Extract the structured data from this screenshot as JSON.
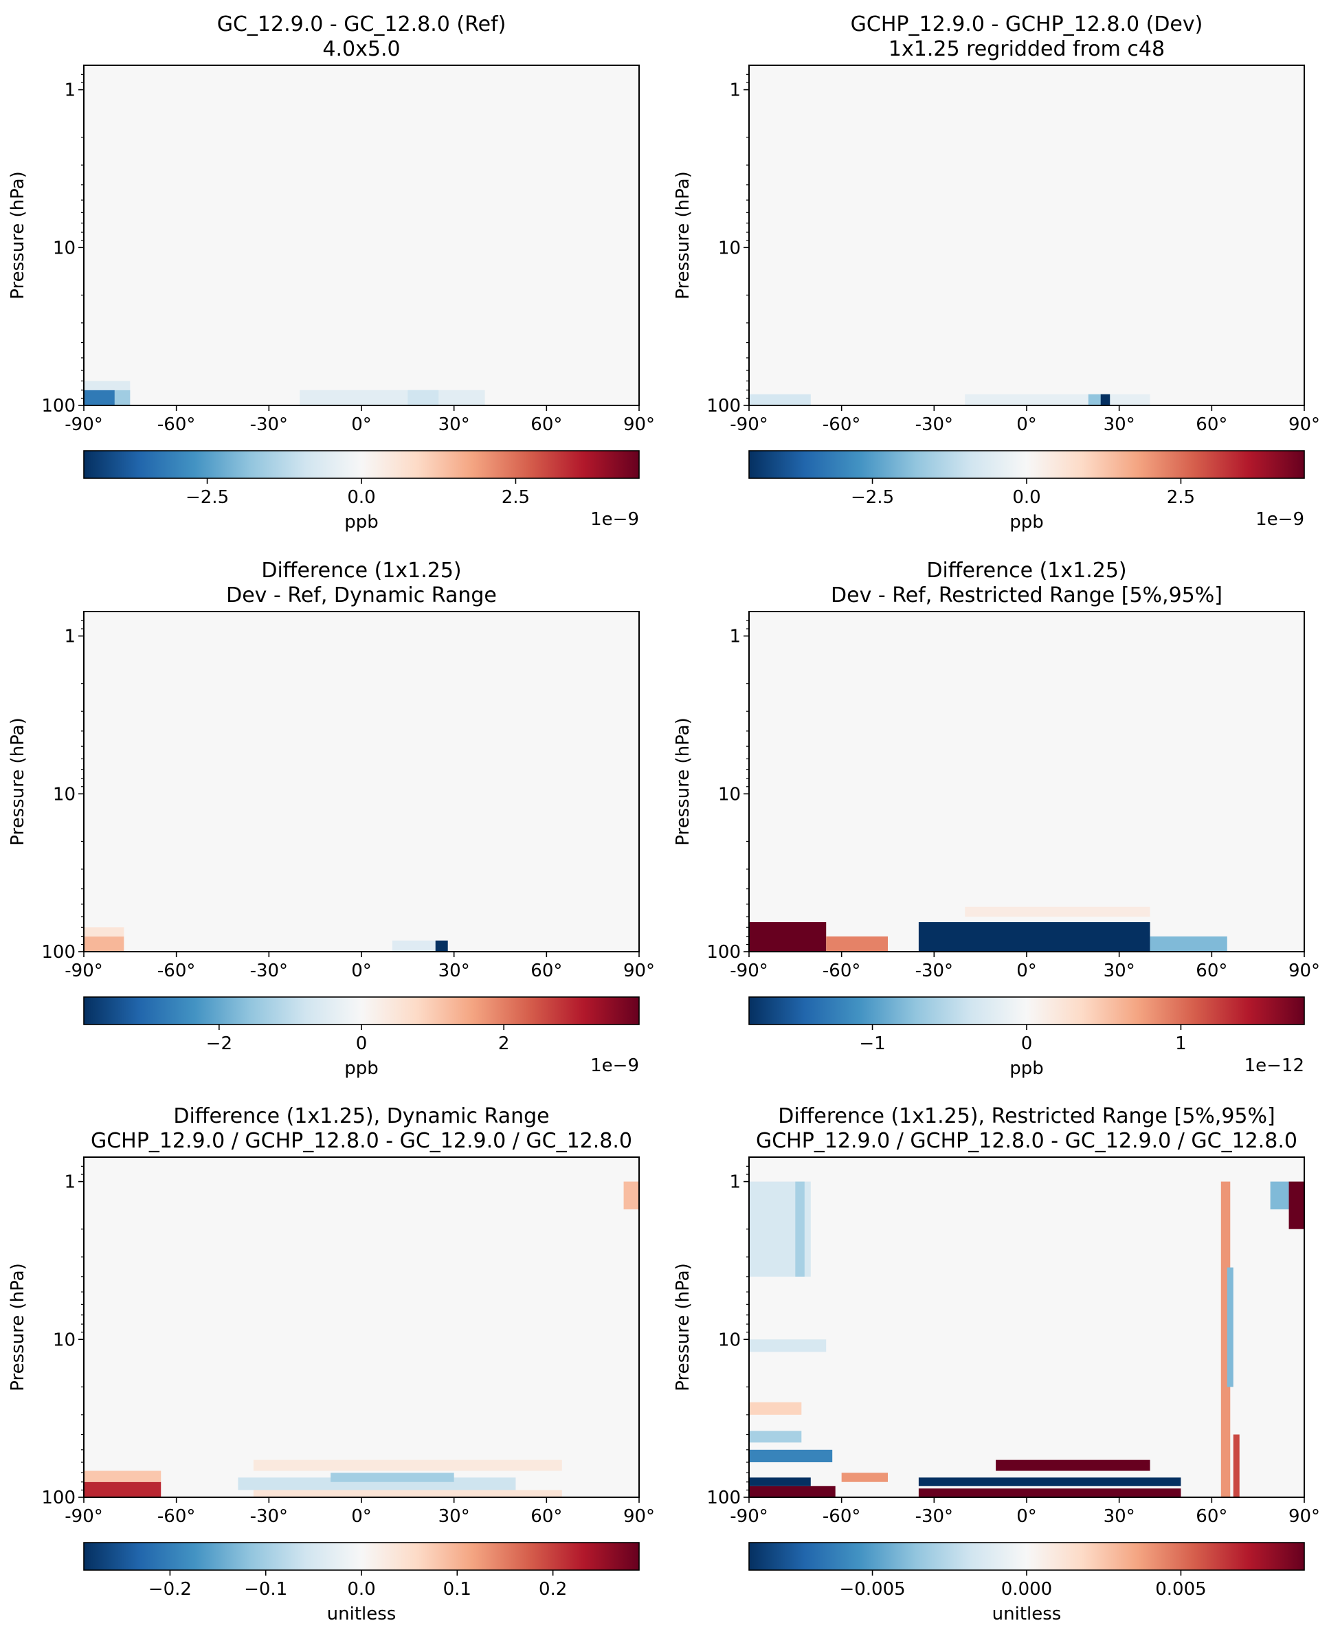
{
  "figure": {
    "cmap_colors": [
      "#053061",
      "#2166ac",
      "#4393c3",
      "#92c5de",
      "#d1e5f0",
      "#f7f7f7",
      "#fddbc7",
      "#f4a582",
      "#d6604d",
      "#b2182b",
      "#67001f"
    ],
    "background_color": "#f7f7f7"
  },
  "chart_data": [
    {
      "type": "heatmap",
      "title": [
        "GC_12.9.0 - GC_12.8.0 (Ref)",
        "4.0x5.0"
      ],
      "xlabel": "",
      "ylabel": "Pressure (hPa)",
      "xlim": [
        -90,
        90
      ],
      "ylim": [
        100,
        0.7
      ],
      "yscale": "log",
      "xticks": [
        -90,
        -60,
        -30,
        0,
        30,
        60,
        90
      ],
      "xtick_labels": [
        "-90°",
        "-60°",
        "-30°",
        "0°",
        "30°",
        "60°",
        "90°"
      ],
      "yticks": [
        1,
        10,
        100
      ],
      "ytick_labels": [
        "1",
        "10",
        "100"
      ],
      "colorbar": {
        "vmin": -4.5e-09,
        "vmax": 4.5e-09,
        "ticks": [
          -2.5e-09,
          0,
          2.5e-09
        ],
        "tick_labels": [
          "−2.5",
          "0.0",
          "2.5"
        ],
        "label": "ppb",
        "offset": "1e−9"
      },
      "features": [
        {
          "lat": [
            -90,
            -80
          ],
          "p": [
            100,
            80
          ],
          "value": -3.2e-09
        },
        {
          "lat": [
            -80,
            -75
          ],
          "p": [
            100,
            80
          ],
          "value": -1.6e-09
        },
        {
          "lat": [
            -90,
            -75
          ],
          "p": [
            80,
            70
          ],
          "value": -6e-10
        },
        {
          "lat": [
            -20,
            40
          ],
          "p": [
            100,
            80
          ],
          "value": -5e-10
        },
        {
          "lat": [
            15,
            25
          ],
          "p": [
            100,
            80
          ],
          "value": -9e-10
        }
      ]
    },
    {
      "type": "heatmap",
      "title": [
        "GCHP_12.9.0 - GCHP_12.8.0 (Dev)",
        "1x1.25 regridded from c48"
      ],
      "xlabel": "",
      "ylabel": "Pressure (hPa)",
      "xlim": [
        -90,
        90
      ],
      "ylim": [
        100,
        0.7
      ],
      "yscale": "log",
      "xticks": [
        -90,
        -60,
        -30,
        0,
        30,
        60,
        90
      ],
      "xtick_labels": [
        "-90°",
        "-60°",
        "-30°",
        "0°",
        "30°",
        "60°",
        "90°"
      ],
      "yticks": [
        1,
        10,
        100
      ],
      "ytick_labels": [
        "1",
        "10",
        "100"
      ],
      "colorbar": {
        "vmin": -4.5e-09,
        "vmax": 4.5e-09,
        "ticks": [
          -2.5e-09,
          0,
          2.5e-09
        ],
        "tick_labels": [
          "−2.5",
          "0.0",
          "2.5"
        ],
        "label": "ppb",
        "offset": "1e−9"
      },
      "features": [
        {
          "lat": [
            -90,
            -70
          ],
          "p": [
            100,
            85
          ],
          "value": -8e-10
        },
        {
          "lat": [
            -20,
            40
          ],
          "p": [
            100,
            85
          ],
          "value": -4e-10
        },
        {
          "lat": [
            20,
            27
          ],
          "p": [
            100,
            85
          ],
          "value": -1.8e-09
        },
        {
          "lat": [
            24,
            27
          ],
          "p": [
            100,
            85
          ],
          "value": -4.5e-09
        }
      ]
    },
    {
      "type": "heatmap",
      "title": [
        "Difference (1x1.25)",
        "Dev - Ref, Dynamic Range"
      ],
      "xlabel": "",
      "ylabel": "Pressure (hPa)",
      "xlim": [
        -90,
        90
      ],
      "ylim": [
        100,
        0.7
      ],
      "yscale": "log",
      "xticks": [
        -90,
        -60,
        -30,
        0,
        30,
        60,
        90
      ],
      "xtick_labels": [
        "-90°",
        "-60°",
        "-30°",
        "0°",
        "30°",
        "60°",
        "90°"
      ],
      "yticks": [
        1,
        10,
        100
      ],
      "ytick_labels": [
        "1",
        "10",
        "100"
      ],
      "colorbar": {
        "vmin": -3.9e-09,
        "vmax": 3.9e-09,
        "ticks": [
          -2e-09,
          0,
          2e-09
        ],
        "tick_labels": [
          "−2",
          "0",
          "2"
        ],
        "label": "ppb",
        "offset": "1e−9"
      },
      "features": [
        {
          "lat": [
            -90,
            -77
          ],
          "p": [
            100,
            80
          ],
          "value": 1.3e-09
        },
        {
          "lat": [
            -90,
            -77
          ],
          "p": [
            80,
            70
          ],
          "value": 5e-10
        },
        {
          "lat": [
            10,
            27
          ],
          "p": [
            100,
            85
          ],
          "value": -5e-10
        },
        {
          "lat": [
            24,
            28
          ],
          "p": [
            100,
            85
          ],
          "value": -3.9e-09
        }
      ]
    },
    {
      "type": "heatmap",
      "title": [
        "Difference (1x1.25)",
        "Dev - Ref, Restricted Range [5%,95%]"
      ],
      "xlabel": "",
      "ylabel": "Pressure (hPa)",
      "xlim": [
        -90,
        90
      ],
      "ylim": [
        100,
        0.7
      ],
      "yscale": "log",
      "xticks": [
        -90,
        -60,
        -30,
        0,
        30,
        60,
        90
      ],
      "xtick_labels": [
        "-90°",
        "-60°",
        "-30°",
        "0°",
        "30°",
        "60°",
        "90°"
      ],
      "yticks": [
        1,
        10,
        100
      ],
      "ytick_labels": [
        "1",
        "10",
        "100"
      ],
      "colorbar": {
        "vmin": -1.8e-12,
        "vmax": 1.8e-12,
        "ticks": [
          -1e-12,
          0,
          1e-12
        ],
        "tick_labels": [
          "−1",
          "0",
          "1"
        ],
        "label": "ppb",
        "offset": "1e−12"
      },
      "features": [
        {
          "lat": [
            -90,
            -65
          ],
          "p": [
            100,
            65
          ],
          "value": 1.8e-12
        },
        {
          "lat": [
            -65,
            -45
          ],
          "p": [
            100,
            80
          ],
          "value": 9e-13
        },
        {
          "lat": [
            -35,
            40
          ],
          "p": [
            100,
            65
          ],
          "value": -1.8e-12
        },
        {
          "lat": [
            40,
            65
          ],
          "p": [
            100,
            80
          ],
          "value": -8e-13
        },
        {
          "lat": [
            -20,
            40
          ],
          "p": [
            60,
            52
          ],
          "value": 1.5e-13
        }
      ]
    },
    {
      "type": "heatmap",
      "title": [
        "Difference (1x1.25), Dynamic Range",
        "GCHP_12.9.0 / GCHP_12.8.0 - GC_12.9.0 / GC_12.8.0"
      ],
      "xlabel": "",
      "ylabel": "Pressure (hPa)",
      "xlim": [
        -90,
        90
      ],
      "ylim": [
        100,
        0.7
      ],
      "yscale": "log",
      "xticks": [
        -90,
        -60,
        -30,
        0,
        30,
        60,
        90
      ],
      "xtick_labels": [
        "-90°",
        "-60°",
        "-30°",
        "0°",
        "30°",
        "60°",
        "90°"
      ],
      "yticks": [
        1,
        10,
        100
      ],
      "ytick_labels": [
        "1",
        "10",
        "100"
      ],
      "colorbar": {
        "vmin": -0.29,
        "vmax": 0.29,
        "ticks": [
          -0.2,
          -0.1,
          0,
          0.1,
          0.2
        ],
        "tick_labels": [
          "−0.2",
          "−0.1",
          "0.0",
          "0.1",
          "0.2"
        ],
        "label": "unitless",
        "offset": ""
      },
      "features": [
        {
          "lat": [
            -90,
            -65
          ],
          "p": [
            100,
            80
          ],
          "value": 0.22
        },
        {
          "lat": [
            -90,
            -65
          ],
          "p": [
            80,
            68
          ],
          "value": 0.08
        },
        {
          "lat": [
            -40,
            50
          ],
          "p": [
            90,
            75
          ],
          "value": -0.06
        },
        {
          "lat": [
            -10,
            30
          ],
          "p": [
            80,
            70
          ],
          "value": -0.1
        },
        {
          "lat": [
            -35,
            65
          ],
          "p": [
            100,
            90
          ],
          "value": 0.04
        },
        {
          "lat": [
            -35,
            65
          ],
          "p": [
            68,
            58
          ],
          "value": 0.03
        },
        {
          "lat": [
            85,
            90
          ],
          "p": [
            1.5,
            1.0
          ],
          "value": 0.09
        }
      ]
    },
    {
      "type": "heatmap",
      "title": [
        "Difference (1x1.25), Restricted Range [5%,95%]",
        "GCHP_12.9.0 / GCHP_12.8.0 - GC_12.9.0 / GC_12.8.0"
      ],
      "xlabel": "",
      "ylabel": "Pressure (hPa)",
      "xlim": [
        -90,
        90
      ],
      "ylim": [
        100,
        0.7
      ],
      "yscale": "log",
      "xticks": [
        -90,
        -60,
        -30,
        0,
        30,
        60,
        90
      ],
      "xtick_labels": [
        "-90°",
        "-60°",
        "-30°",
        "0°",
        "30°",
        "60°",
        "90°"
      ],
      "yticks": [
        1,
        10,
        100
      ],
      "ytick_labels": [
        "1",
        "10",
        "100"
      ],
      "colorbar": {
        "vmin": -0.009,
        "vmax": 0.009,
        "ticks": [
          -0.005,
          0,
          0.005
        ],
        "tick_labels": [
          "−0.005",
          "0.000",
          "0.005"
        ],
        "label": "unitless",
        "offset": ""
      },
      "features": [
        {
          "lat": [
            -90,
            -62
          ],
          "p": [
            100,
            85
          ],
          "value": 0.009
        },
        {
          "lat": [
            -90,
            -70
          ],
          "p": [
            85,
            75
          ],
          "value": -0.009
        },
        {
          "lat": [
            -60,
            -45
          ],
          "p": [
            80,
            70
          ],
          "value": 0.004
        },
        {
          "lat": [
            -35,
            50
          ],
          "p": [
            85,
            75
          ],
          "value": -0.009
        },
        {
          "lat": [
            -35,
            50
          ],
          "p": [
            100,
            88
          ],
          "value": 0.009
        },
        {
          "lat": [
            -10,
            40
          ],
          "p": [
            68,
            58
          ],
          "value": 0.009
        },
        {
          "lat": [
            -90,
            -63
          ],
          "p": [
            60,
            50
          ],
          "value": -0.006
        },
        {
          "lat": [
            -90,
            -73
          ],
          "p": [
            45,
            38
          ],
          "value": -0.003
        },
        {
          "lat": [
            -90,
            -73
          ],
          "p": [
            30,
            25
          ],
          "value": 0.002
        },
        {
          "lat": [
            -90,
            -65
          ],
          "p": [
            12,
            10
          ],
          "value": -0.0015
        },
        {
          "lat": [
            -90,
            -70
          ],
          "p": [
            4,
            1.0
          ],
          "value": -0.0015
        },
        {
          "lat": [
            -75,
            -72
          ],
          "p": [
            4,
            1.0
          ],
          "value": -0.003
        },
        {
          "lat": [
            63,
            66
          ],
          "p": [
            100,
            1.0
          ],
          "value": 0.004
        },
        {
          "lat": [
            65,
            67
          ],
          "p": [
            20,
            3.5
          ],
          "value": -0.004
        },
        {
          "lat": [
            67,
            69
          ],
          "p": [
            100,
            40
          ],
          "value": 0.006
        },
        {
          "lat": [
            79,
            85
          ],
          "p": [
            1.5,
            1.0
          ],
          "value": -0.004
        },
        {
          "lat": [
            85,
            90
          ],
          "p": [
            2.0,
            1.0
          ],
          "value": 0.009
        }
      ]
    }
  ]
}
